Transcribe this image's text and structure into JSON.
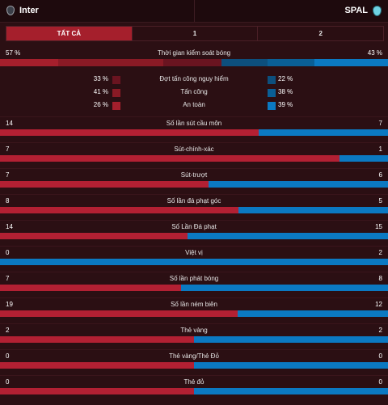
{
  "header": {
    "home_team": "Inter",
    "away_team": "SPAL"
  },
  "tabs": [
    {
      "label": "TẤT CẢ",
      "active": true
    },
    {
      "label": "1",
      "active": false
    },
    {
      "label": "2",
      "active": false
    }
  ],
  "possession": {
    "label": "Thời gian kiểm soát bóng",
    "home": "57 %",
    "away": "43 %",
    "home_pct": 57,
    "away_pct": 43,
    "segments": [
      {
        "color": "#a51f2c",
        "fraction": 0.15
      },
      {
        "color": "#8a1a25",
        "fraction": 0.27
      },
      {
        "color": "#6a1420",
        "fraction": 0.15
      },
      {
        "color": "#0d4f7d",
        "fraction": 0.12
      },
      {
        "color": "#0a5f96",
        "fraction": 0.12
      },
      {
        "color": "#0b79c2",
        "fraction": 0.19
      }
    ],
    "breakdown": [
      {
        "label": "Đợt tấn công nguy hiểm",
        "home": "33 %",
        "away": "22 %",
        "home_color": "#6a1420",
        "away_color": "#0d4f7d"
      },
      {
        "label": "Tấn công",
        "home": "41 %",
        "away": "38 %",
        "home_color": "#8a1a25",
        "away_color": "#0a5f96"
      },
      {
        "label": "An toàn",
        "home": "26 %",
        "away": "39 %",
        "home_color": "#a51f2c",
        "away_color": "#0b79c2"
      }
    ]
  },
  "colors": {
    "home": "#b32033",
    "away": "#0b79c2",
    "background": "#2b0f13"
  },
  "stats": [
    {
      "label": "Số lần sút cầu môn",
      "home": "14",
      "away": "7",
      "home_share": 0.667
    },
    {
      "label": "Sút-chính-xác",
      "home": "7",
      "away": "1",
      "home_share": 0.875
    },
    {
      "label": "Sút-trượt",
      "home": "7",
      "away": "6",
      "home_share": 0.538
    },
    {
      "label": "Số lần đá phạt góc",
      "home": "8",
      "away": "5",
      "home_share": 0.615
    },
    {
      "label": "Số Lần Đá phạt",
      "home": "14",
      "away": "15",
      "home_share": 0.483
    },
    {
      "label": "Việt vị",
      "home": "0",
      "away": "2",
      "home_share": 0
    },
    {
      "label": "Số lần phát bóng",
      "home": "7",
      "away": "8",
      "home_share": 0.467
    },
    {
      "label": "Số lần ném biên",
      "home": "19",
      "away": "12",
      "home_share": 0.613
    },
    {
      "label": "Thẻ vàng",
      "home": "2",
      "away": "2",
      "home_share": 0.5
    },
    {
      "label": "Thẻ vàng/Thẻ Đỏ",
      "home": "0",
      "away": "0",
      "home_share": 0.5
    },
    {
      "label": "Thẻ đỏ",
      "home": "0",
      "away": "0",
      "home_share": 0.5
    }
  ]
}
